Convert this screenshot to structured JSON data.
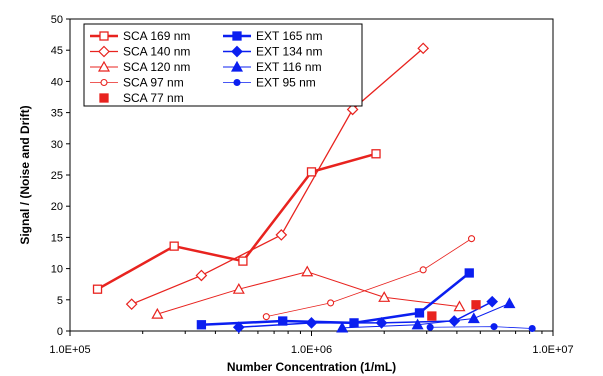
{
  "chart_data": {
    "type": "line",
    "xlabel": "Number Concentration (1/mL)",
    "ylabel": "Signal / (Noise and Drift)",
    "xscale": "log",
    "xlim": [
      100000,
      10000000
    ],
    "ylim": [
      0,
      50
    ],
    "x_ticks": [
      "1.0E+05",
      "1.0E+06",
      "1.0E+07"
    ],
    "y_ticks": [
      "0",
      "5",
      "10",
      "15",
      "20",
      "25",
      "30",
      "35",
      "40",
      "45",
      "50"
    ],
    "grid": false,
    "legend_position": "top-left",
    "series": [
      {
        "name": "SCA 169 nm",
        "color": "#e8231f",
        "width": 2.5,
        "marker": "square-open",
        "x": [
          130000,
          270000,
          520000,
          1000000,
          1850000
        ],
        "y": [
          6.7,
          13.6,
          11.2,
          25.5,
          28.4
        ]
      },
      {
        "name": "SCA 140 nm",
        "color": "#e8231f",
        "width": 1.3,
        "marker": "diamond-open",
        "x": [
          180000,
          350000,
          750000,
          1480000,
          2900000
        ],
        "y": [
          4.3,
          8.9,
          15.4,
          35.5,
          45.3
        ]
      },
      {
        "name": "SCA 120 nm",
        "color": "#e8231f",
        "width": 1.0,
        "marker": "triangle-open",
        "x": [
          230000,
          500000,
          960000,
          2000000,
          4100000
        ],
        "y": [
          2.7,
          6.7,
          9.5,
          5.4,
          3.9
        ]
      },
      {
        "name": "SCA 97 nm",
        "color": "#e8231f",
        "width": 0.8,
        "marker": "circle-open",
        "x": [
          650000,
          1200000,
          2900000,
          4600000
        ],
        "y": [
          2.3,
          4.5,
          9.8,
          14.8
        ]
      },
      {
        "name": "SCA 77 nm",
        "color": "#e8231f",
        "width": 0,
        "marker": "square-filled",
        "x": [
          3150000,
          4800000
        ],
        "y": [
          2.4,
          4.2
        ]
      },
      {
        "name": "EXT 165 nm",
        "color": "#0b1ff0",
        "width": 2.5,
        "marker": "square-filled",
        "x": [
          350000,
          760000,
          1500000,
          2800000,
          4500000
        ],
        "y": [
          1.0,
          1.6,
          1.3,
          2.9,
          9.3
        ]
      },
      {
        "name": "EXT 134 nm",
        "color": "#0b1ff0",
        "width": 1.5,
        "marker": "diamond-filled",
        "x": [
          500000,
          1000000,
          1950000,
          3900000,
          5600000
        ],
        "y": [
          0.6,
          1.3,
          1.3,
          1.6,
          4.7
        ]
      },
      {
        "name": "EXT 116 nm",
        "color": "#0b1ff0",
        "width": 1.0,
        "marker": "triangle-filled",
        "x": [
          1340000,
          2750000,
          4700000,
          6600000
        ],
        "y": [
          0.5,
          1.0,
          2.0,
          4.4
        ]
      },
      {
        "name": "EXT 95 nm",
        "color": "#0b1ff0",
        "width": 0.8,
        "marker": "circle-filled",
        "x": [
          3100000,
          5700000,
          8200000
        ],
        "y": [
          0.6,
          0.7,
          0.4
        ]
      }
    ]
  }
}
